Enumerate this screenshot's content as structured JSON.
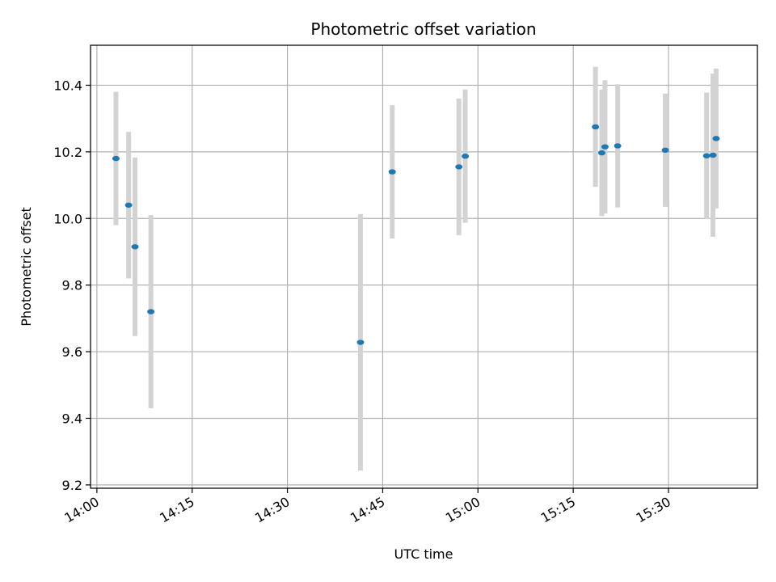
{
  "chart_data": {
    "type": "scatter",
    "title": "Photometric offset variation",
    "xlabel": "UTC time",
    "ylabel": "Photometric offset",
    "x_axis": "time",
    "xlim": [
      "13:59",
      "15:44"
    ],
    "ylim": [
      9.19,
      10.52
    ],
    "x_ticks": [
      "14:00",
      "14:15",
      "14:30",
      "14:45",
      "15:00",
      "15:15",
      "15:30"
    ],
    "y_ticks": [
      9.2,
      9.4,
      9.6,
      9.8,
      10.0,
      10.2,
      10.4
    ],
    "grid": true,
    "marker_color": "#1f77b4",
    "error_bar_color": "#d3d3d3",
    "series": [
      {
        "points": [
          {
            "x": "14:03",
            "y": 10.18,
            "err": 0.2
          },
          {
            "x": "14:05",
            "y": 10.04,
            "err": 0.22
          },
          {
            "x": "14:06",
            "y": 9.915,
            "err": 0.268
          },
          {
            "x": "14:08.5",
            "y": 9.72,
            "err": 0.29
          },
          {
            "x": "14:41.5",
            "y": 9.628,
            "err": 0.385
          },
          {
            "x": "14:46.5",
            "y": 10.14,
            "err": 0.2
          },
          {
            "x": "14:57",
            "y": 10.155,
            "err": 0.205
          },
          {
            "x": "14:58",
            "y": 10.187,
            "err": 0.2
          },
          {
            "x": "15:18.5",
            "y": 10.275,
            "err": 0.18
          },
          {
            "x": "15:19.5",
            "y": 10.197,
            "err": 0.19
          },
          {
            "x": "15:20",
            "y": 10.215,
            "err": 0.2
          },
          {
            "x": "15:22",
            "y": 10.218,
            "err": 0.185
          },
          {
            "x": "15:29.5",
            "y": 10.205,
            "err": 0.17
          },
          {
            "x": "15:36",
            "y": 10.188,
            "err": 0.19
          },
          {
            "x": "15:37",
            "y": 10.19,
            "err": 0.245
          },
          {
            "x": "15:37.5",
            "y": 10.24,
            "err": 0.21
          }
        ]
      }
    ]
  }
}
